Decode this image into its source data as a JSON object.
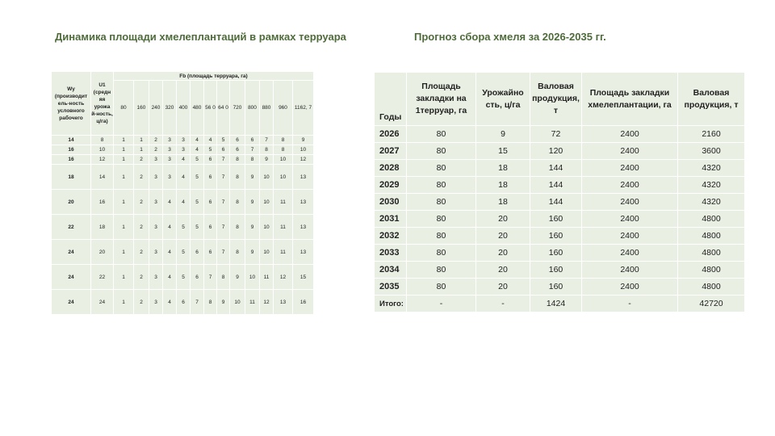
{
  "titles": {
    "left": "Динамика площади хмелеплантаций в рамках терруара",
    "right": "Прогноз сбора хмеля за 2026-2035 гг."
  },
  "left_table": {
    "col1_header": "Wy (производит ель-ность условного рабочего",
    "col2_header": "U1 (средн яя урожа й-ность, ц/га)",
    "group_header": "Fb (площадь терруара, га)",
    "fb_values": [
      "80",
      "160",
      "240",
      "320",
      "400",
      "480",
      "56 0",
      "64 0",
      "720",
      "800",
      "880",
      "960",
      "1162, 7"
    ],
    "rows": [
      {
        "wy": "14",
        "u1": "8",
        "values": [
          "1",
          "1",
          "2",
          "3",
          "3",
          "4",
          "4",
          "5",
          "6",
          "6",
          "7",
          "8",
          "9"
        ]
      },
      {
        "wy": "16",
        "u1": "10",
        "values": [
          "1",
          "1",
          "2",
          "3",
          "3",
          "4",
          "5",
          "6",
          "6",
          "7",
          "8",
          "8",
          "10"
        ]
      },
      {
        "wy": "16",
        "u1": "12",
        "values": [
          "1",
          "2",
          "3",
          "3",
          "4",
          "5",
          "6",
          "7",
          "8",
          "8",
          "9",
          "10",
          "12"
        ]
      },
      {
        "wy": "18",
        "u1": "14",
        "values": [
          "1",
          "2",
          "3",
          "3",
          "4",
          "5",
          "6",
          "7",
          "8",
          "9",
          "10",
          "10",
          "13"
        ]
      },
      {
        "wy": "20",
        "u1": "16",
        "values": [
          "1",
          "2",
          "3",
          "4",
          "4",
          "5",
          "6",
          "7",
          "8",
          "9",
          "10",
          "11",
          "13"
        ]
      },
      {
        "wy": "22",
        "u1": "18",
        "values": [
          "1",
          "2",
          "3",
          "4",
          "5",
          "5",
          "6",
          "7",
          "8",
          "9",
          "10",
          "11",
          "13"
        ]
      },
      {
        "wy": "24",
        "u1": "20",
        "values": [
          "1",
          "2",
          "3",
          "4",
          "5",
          "6",
          "6",
          "7",
          "8",
          "9",
          "10",
          "11",
          "13"
        ]
      },
      {
        "wy": "24",
        "u1": "22",
        "values": [
          "1",
          "2",
          "3",
          "4",
          "5",
          "6",
          "7",
          "8",
          "9",
          "10",
          "11",
          "12",
          "15"
        ]
      },
      {
        "wy": "24",
        "u1": "24",
        "values": [
          "1",
          "2",
          "3",
          "4",
          "6",
          "7",
          "8",
          "9",
          "10",
          "11",
          "12",
          "13",
          "16"
        ]
      }
    ]
  },
  "right_table": {
    "headers": [
      "Годы",
      "Площадь закладки на 1терруар, га",
      "Урожайно сть, ц/га",
      "Валовая продукция, т",
      "Площадь закладки хмелеплантации, га",
      "Валовая продукция, т"
    ],
    "rows": [
      [
        "2026",
        "80",
        "9",
        "72",
        "2400",
        "2160"
      ],
      [
        "2027",
        "80",
        "15",
        "120",
        "2400",
        "3600"
      ],
      [
        "2028",
        "80",
        "18",
        "144",
        "2400",
        "4320"
      ],
      [
        "2029",
        "80",
        "18",
        "144",
        "2400",
        "4320"
      ],
      [
        "2030",
        "80",
        "18",
        "144",
        "2400",
        "4320"
      ],
      [
        "2031",
        "80",
        "20",
        "160",
        "2400",
        "4800"
      ],
      [
        "2032",
        "80",
        "20",
        "160",
        "2400",
        "4800"
      ],
      [
        "2033",
        "80",
        "20",
        "160",
        "2400",
        "4800"
      ],
      [
        "2034",
        "80",
        "20",
        "160",
        "2400",
        "4800"
      ],
      [
        "2035",
        "80",
        "20",
        "160",
        "2400",
        "4800"
      ],
      [
        "Итого:",
        "-",
        "-",
        "1424",
        "-",
        "42720"
      ]
    ]
  }
}
